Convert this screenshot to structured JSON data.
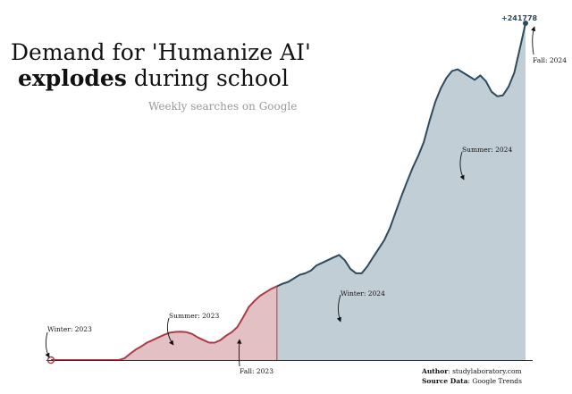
{
  "title": {
    "part1": "Demand for 'Humanize AI'",
    "bold": "explodes",
    "rest": "during school"
  },
  "subtitle": "Weekly searches on Google",
  "chart_data": {
    "type": "area",
    "x_start": "2023-01-01",
    "x_step": "week",
    "ylim": [
      0,
      241778
    ],
    "max_label": "+241778",
    "values": [
      0,
      0,
      0,
      0,
      0,
      0,
      0,
      0,
      0,
      0,
      0,
      0,
      0,
      1200,
      4500,
      7500,
      9800,
      12500,
      14300,
      16200,
      18100,
      19600,
      20200,
      20300,
      20000,
      18700,
      16200,
      14300,
      12500,
      12500,
      14300,
      17500,
      20000,
      23700,
      30500,
      38000,
      42400,
      46100,
      48600,
      51100,
      53000,
      54800,
      56100,
      58600,
      61100,
      62300,
      64200,
      67900,
      69800,
      71700,
      73600,
      75400,
      71700,
      65500,
      62300,
      62300,
      67300,
      73600,
      79800,
      86100,
      94800,
      106000,
      117200,
      127800,
      137800,
      146500,
      156500,
      171400,
      185100,
      195000,
      202500,
      207500,
      208700,
      206200,
      203700,
      201200,
      204300,
      200000,
      192500,
      189400,
      190000,
      196200,
      206200,
      223700,
      241778
    ],
    "segments": [
      {
        "from": 0,
        "to": 40,
        "fill": "#e3c0c3",
        "line": "#a83d45"
      },
      {
        "from": 40,
        "to": 84,
        "fill": "#c2ced5",
        "line": "#2d4a5e"
      }
    ],
    "annotations": [
      {
        "label": "Winter: 2023",
        "index": 0
      },
      {
        "label": "Summer: 2023",
        "index": 23
      },
      {
        "label": "Fall: 2023",
        "index": 40
      },
      {
        "label": "Winter: 2024",
        "index": 53
      },
      {
        "label": "Summer: 2024",
        "index": 76
      },
      {
        "label": "Fall: 2024",
        "index": 84
      }
    ]
  },
  "footer": {
    "author_label": "Author",
    "author": ": studylaboratory.com",
    "source_label": "Source Data",
    "source": ": Google Trends"
  }
}
